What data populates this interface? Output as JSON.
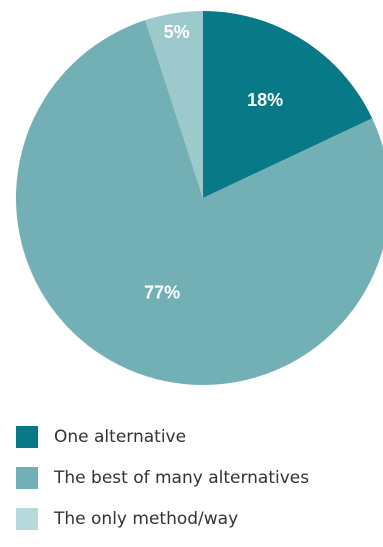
{
  "chart_data": {
    "type": "pie",
    "start_angle": "top",
    "direction": "clockwise",
    "legend_position": "bottom-left",
    "slices": [
      {
        "name": "One alternative",
        "value": 18,
        "label": "18%",
        "color": "#087a87"
      },
      {
        "name": "The best of many alternatives",
        "value": 77,
        "label": "77%",
        "color": "#72b0b6"
      },
      {
        "name": "The only method/way",
        "value": 5,
        "label": "5%",
        "color": "#9dc9cc"
      }
    ],
    "legend_colors": [
      "#087a87",
      "#72b0b6",
      "#b6dadc"
    ]
  }
}
